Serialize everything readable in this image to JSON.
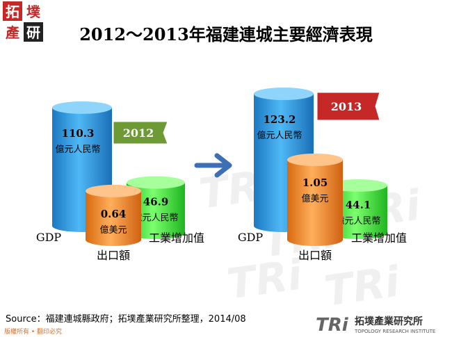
{
  "header": {
    "logo_text_1": "拓",
    "logo_text_2": "墣",
    "logo_text_3": "產",
    "logo_text_4": "研",
    "title": "2012～2013年福建連城主要經濟表現"
  },
  "chart_data": {
    "type": "bar",
    "style": "3d-cylinders",
    "groups": [
      {
        "year": "2012",
        "year_badge_color": "#6e9a36",
        "items": [
          {
            "label": "GDP",
            "value": 110.3,
            "value_text": "110.3",
            "unit": "億元人民幣",
            "color": "#2d9cdf"
          },
          {
            "label": "出口額",
            "value": 0.64,
            "value_text": "0.64",
            "unit": "億美元",
            "color": "#f08a24"
          },
          {
            "label": "工業增加值",
            "value": 46.9,
            "value_text": "46.9",
            "unit": "億元人民幣",
            "color": "#39e23a"
          }
        ]
      },
      {
        "year": "2013",
        "year_badge_color": "#c62828",
        "items": [
          {
            "label": "GDP",
            "value": 123.2,
            "value_text": "123.2",
            "unit": "億元人民幣",
            "color": "#2d9cdf"
          },
          {
            "label": "出口額",
            "value": 1.05,
            "value_text": "1.05",
            "unit": "億美元",
            "color": "#f08a24"
          },
          {
            "label": "工業增加值",
            "value": 44.1,
            "value_text": "44.1",
            "unit": "億元人民幣",
            "color": "#39e23a"
          }
        ]
      }
    ],
    "arrow_color": "#3c6fb4"
  },
  "footer": {
    "source": "Source：福建連城縣政府；拓墣產業研究所整理，2014/08",
    "rights": "版權所有 • 翻印必究",
    "company_logo_text": "TRi",
    "company_name": "拓墣產業研究所",
    "company_name_en": "TOPOLOGY RESEARCH INSTITUTE"
  }
}
